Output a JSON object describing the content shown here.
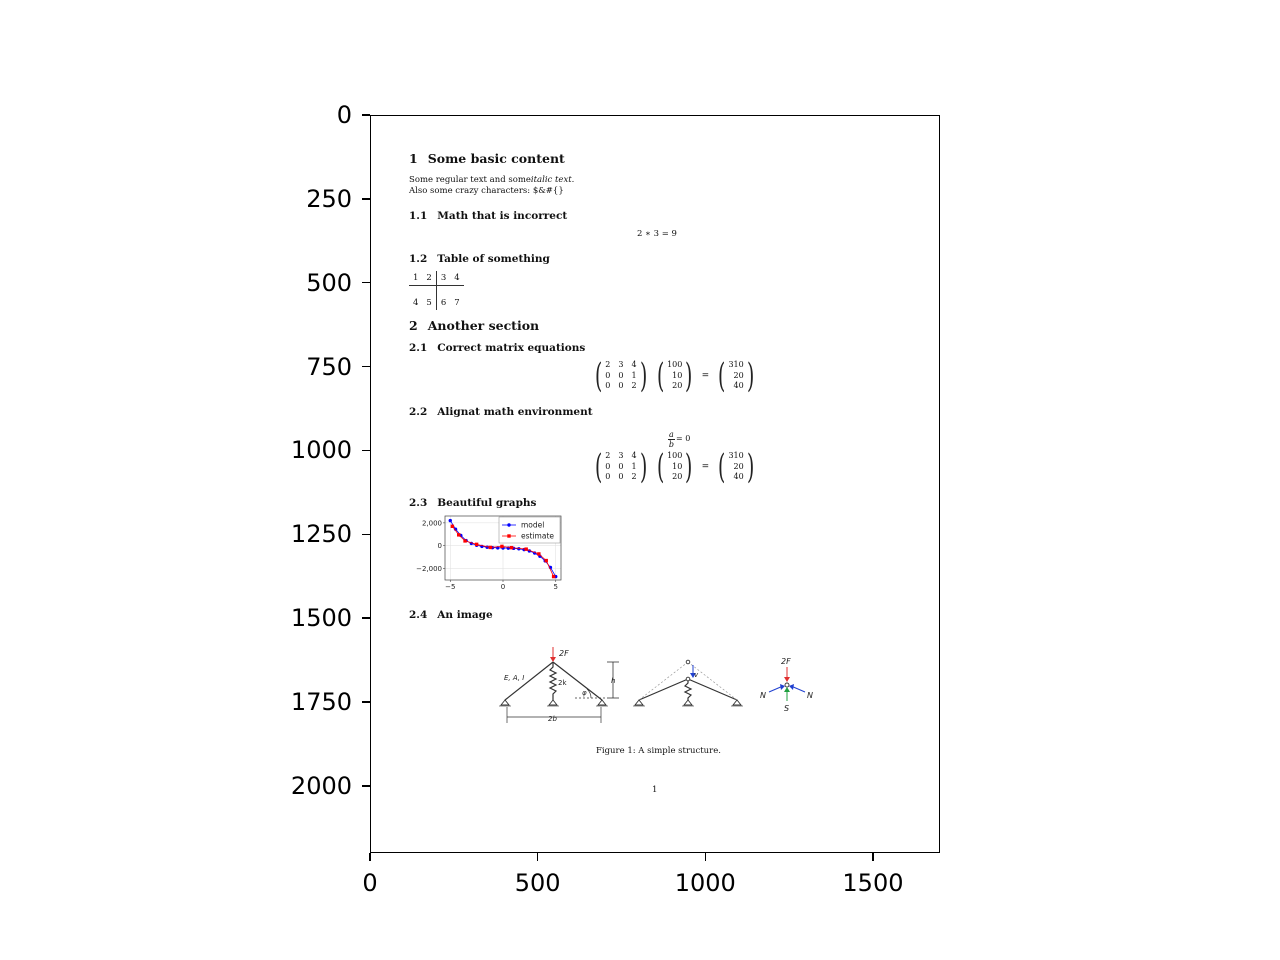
{
  "axes": {
    "yticks": [
      {
        "label": "0",
        "value": 0
      },
      {
        "label": "250",
        "value": 250
      },
      {
        "label": "500",
        "value": 500
      },
      {
        "label": "750",
        "value": 750
      },
      {
        "label": "1000",
        "value": 1000
      },
      {
        "label": "1250",
        "value": 1250
      },
      {
        "label": "1500",
        "value": 1500
      },
      {
        "label": "1750",
        "value": 1750
      },
      {
        "label": "2000",
        "value": 2000
      }
    ],
    "xticks": [
      {
        "label": "0",
        "value": 0
      },
      {
        "label": "500",
        "value": 500
      },
      {
        "label": "1000",
        "value": 1000
      },
      {
        "label": "1500",
        "value": 1500
      }
    ]
  },
  "document": {
    "sec1": {
      "num": "1",
      "title": "Some basic content"
    },
    "body_line1_pre": "Some regular text and some",
    "body_line1_italic": "italic text.",
    "body_line2": "Also some crazy characters: $&#{}",
    "sec1_1": {
      "num": "1.1",
      "title": "Math that is incorrect"
    },
    "eq_incorrect": "2 ∗ 3 = 9",
    "sec1_2": {
      "num": "1.2",
      "title": "Table of something"
    },
    "table": [
      [
        "1",
        "2",
        "3",
        "4"
      ],
      [
        "4",
        "5",
        "6",
        "7"
      ]
    ],
    "sec2": {
      "num": "2",
      "title": "Another section"
    },
    "sec2_1": {
      "num": "2.1",
      "title": "Correct matrix equations"
    },
    "matrix_a": [
      [
        "2",
        "3",
        "4"
      ],
      [
        "0",
        "0",
        "1"
      ],
      [
        "0",
        "0",
        "2"
      ]
    ],
    "vector_b": [
      "100",
      "10",
      "20"
    ],
    "vector_c": [
      "310",
      "20",
      "40"
    ],
    "equals": "=",
    "sec2_2": {
      "num": "2.2",
      "title": "Alignat math environment"
    },
    "frac_num": "a",
    "frac_den": "b",
    "frac_rest": "= 0",
    "sec2_3": {
      "num": "2.3",
      "title": "Beautiful graphs"
    },
    "sec2_4": {
      "num": "2.4",
      "title": "An image"
    },
    "figure_caption": "Figure 1:  A simple structure.",
    "page_number": "1",
    "figure_labels": {
      "force_top": "2F",
      "member_props": "E, A, I",
      "spring": "2k",
      "height": "h",
      "angle": "φ",
      "span": "2b",
      "displacement": "v",
      "force_fbd": "2F",
      "normal_left": "N",
      "normal_right": "N",
      "spring_force": "S"
    }
  },
  "chart_data": {
    "type": "line",
    "title": "",
    "xlabel": "",
    "ylabel": "",
    "xlim": [
      -5.5,
      5.5
    ],
    "ylim": [
      -3000,
      2600
    ],
    "xticks": [
      {
        "v": -5,
        "label": "−5"
      },
      {
        "v": 0,
        "label": "0"
      },
      {
        "v": 5,
        "label": "5"
      }
    ],
    "yticks": [
      {
        "v": 2000,
        "label": "2,000"
      },
      {
        "v": 0,
        "label": "0"
      },
      {
        "v": -2000,
        "label": "−2,000"
      }
    ],
    "grid": true,
    "legend": "top-right",
    "series": [
      {
        "name": "model",
        "color": "#0000ff",
        "marker": "circle",
        "x": [
          -5,
          -4.5,
          -4,
          -3.5,
          -3,
          -2.5,
          -2,
          -1.5,
          -1,
          -0.5,
          0,
          0.5,
          1,
          1.5,
          2,
          2.5,
          3,
          3.5,
          4,
          4.5,
          5
        ],
        "y": [
          2200,
          1450,
          900,
          450,
          200,
          40,
          -60,
          -130,
          -170,
          -190,
          -200,
          -210,
          -230,
          -270,
          -340,
          -460,
          -640,
          -920,
          -1330,
          -1900,
          -2700
        ]
      },
      {
        "name": "estimate",
        "color": "#ff0000",
        "marker": "square",
        "x": [
          -4.8,
          -4.2,
          -3.6,
          -2.5,
          -1.2,
          -0.1,
          0.8,
          2.2,
          3.4,
          4.1,
          4.8
        ],
        "y": [
          1700,
          950,
          420,
          120,
          -150,
          -60,
          -170,
          -300,
          -720,
          -1300,
          -2700
        ]
      }
    ]
  }
}
